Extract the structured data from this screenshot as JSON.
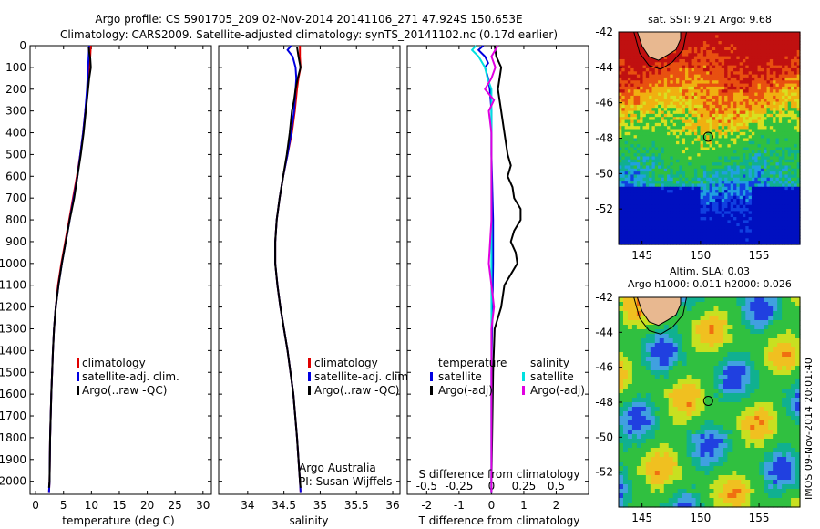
{
  "figure": {
    "title_line1": "Argo profile: CS 5901705_209 02-Nov-2014 20141106_271 47.924S 150.653E",
    "title_line2": "Climatology: CARS2009. Satellite-adjusted climatology: synTS_20141102.nc (0.17d earlier)",
    "timestamp": "IMOS 09-Nov-2014 20:01:40",
    "credit_line1": "Argo Australia",
    "credit_line2": "PI: Susan Wijffels"
  },
  "chart_data": [
    {
      "type": "line",
      "name": "temperature-profile",
      "xlabel": "temperature (deg C)",
      "ylabel": "",
      "xlim": [
        -1,
        31.5
      ],
      "ylim": [
        0,
        2060
      ],
      "xticks": [
        "0",
        "5",
        "10",
        "15",
        "20",
        "25",
        "30"
      ],
      "xtick_values": [
        0,
        5,
        10,
        15,
        20,
        25,
        30
      ],
      "yticks": [
        "0",
        "100",
        "200",
        "300",
        "400",
        "500",
        "600",
        "700",
        "800",
        "900",
        "1000",
        "1100",
        "1200",
        "1300",
        "1400",
        "1500",
        "1600",
        "1700",
        "1800",
        "1900",
        "2000"
      ],
      "ytick_values": [
        0,
        100,
        200,
        300,
        400,
        500,
        600,
        700,
        800,
        900,
        1000,
        1100,
        1200,
        1300,
        1400,
        1500,
        1600,
        1700,
        1800,
        1900,
        2000
      ],
      "legend": [
        "climatology",
        "satellite-adj. clim.",
        "Argo(..raw -QC)"
      ],
      "series": [
        {
          "name": "climatology",
          "color": "#e00000",
          "depth": [
            0,
            50,
            100,
            200,
            300,
            400,
            500,
            600,
            700,
            800,
            900,
            1000,
            1100,
            1200,
            1300,
            1400,
            1600,
            1800,
            2000,
            2050
          ],
          "values": [
            9.9,
            9.8,
            9.6,
            9.3,
            8.9,
            8.5,
            8.0,
            7.4,
            6.7,
            6.0,
            5.3,
            4.6,
            4.0,
            3.6,
            3.3,
            3.1,
            2.8,
            2.6,
            2.5,
            2.4
          ]
        },
        {
          "name": "satellite-adj. clim.",
          "color": "#0000e0",
          "depth": [
            0,
            50,
            100,
            200,
            300,
            400,
            500,
            600,
            700,
            800,
            900,
            1000,
            1100,
            1200,
            1300,
            1400,
            1600,
            1800,
            2000,
            2050
          ],
          "values": [
            9.6,
            9.5,
            9.4,
            9.2,
            8.9,
            8.5,
            8.0,
            7.5,
            6.8,
            6.1,
            5.4,
            4.7,
            4.1,
            3.6,
            3.3,
            3.1,
            2.8,
            2.6,
            2.5,
            2.4
          ]
        },
        {
          "name": "Argo(..raw -QC)",
          "color": "#000000",
          "depth": [
            5,
            30,
            60,
            100,
            150,
            200,
            300,
            400,
            500,
            600,
            700,
            800,
            900,
            1000,
            1100,
            1200,
            1300,
            1400,
            1600,
            1800,
            2000,
            2030
          ],
          "values": [
            9.5,
            9.6,
            9.8,
            9.9,
            9.6,
            9.4,
            9.0,
            8.6,
            8.1,
            7.5,
            6.9,
            6.1,
            5.4,
            4.7,
            4.1,
            3.6,
            3.3,
            3.1,
            2.8,
            2.6,
            2.5,
            2.4
          ]
        }
      ]
    },
    {
      "type": "line",
      "name": "salinity-profile",
      "xlabel": "salinity",
      "xlim": [
        33.6,
        36.1
      ],
      "ylim": [
        0,
        2060
      ],
      "xticks": [
        "34",
        "34.5",
        "35",
        "35.5",
        "36"
      ],
      "xtick_values": [
        34,
        34.5,
        35,
        35.5,
        36
      ],
      "legend": [
        "climatology",
        "satellite-adj. clim.",
        "Argo(..raw -QC)"
      ],
      "series": [
        {
          "name": "climatology",
          "color": "#e00000",
          "depth": [
            0,
            50,
            100,
            150,
            200,
            300,
            400,
            500,
            600,
            700,
            800,
            900,
            1000,
            1100,
            1200,
            1400,
            1600,
            1800,
            2000,
            2050
          ],
          "values": [
            34.72,
            34.72,
            34.73,
            34.7,
            34.68,
            34.65,
            34.61,
            34.55,
            34.49,
            34.44,
            34.4,
            34.38,
            34.38,
            34.41,
            34.45,
            34.55,
            34.63,
            34.68,
            34.72,
            34.73
          ]
        },
        {
          "name": "satellite-adj. clim.",
          "color": "#0000e0",
          "depth": [
            0,
            20,
            50,
            100,
            150,
            200,
            300,
            400,
            500,
            600,
            700,
            800,
            900,
            1000,
            1100,
            1200,
            1400,
            1600,
            1800,
            2000,
            2050
          ],
          "values": [
            34.6,
            34.55,
            34.62,
            34.66,
            34.67,
            34.66,
            34.64,
            34.6,
            34.55,
            34.49,
            34.44,
            34.4,
            34.38,
            34.38,
            34.41,
            34.45,
            34.55,
            34.63,
            34.68,
            34.72,
            34.73
          ]
        },
        {
          "name": "Argo(..raw -QC)",
          "color": "#000000",
          "depth": [
            5,
            50,
            100,
            150,
            200,
            250,
            300,
            400,
            500,
            600,
            700,
            800,
            900,
            1000,
            1100,
            1200,
            1400,
            1600,
            1800,
            2000,
            2030
          ],
          "values": [
            34.68,
            34.7,
            34.73,
            34.69,
            34.66,
            34.64,
            34.61,
            34.58,
            34.54,
            34.49,
            34.44,
            34.4,
            34.38,
            34.38,
            34.41,
            34.45,
            34.55,
            34.63,
            34.68,
            34.72,
            34.73
          ]
        }
      ]
    },
    {
      "type": "line",
      "name": "difference-profile",
      "xlabel": "T difference from climatology",
      "xlabel_top": "S difference from climatology",
      "xlim": [
        -2.6,
        3.0
      ],
      "ylim": [
        0,
        2060
      ],
      "xticks": [
        "-2",
        "-1",
        "0",
        "1",
        "2"
      ],
      "xtick_values": [
        -2,
        -1,
        0,
        1,
        2
      ],
      "xticks_top": [
        "-0.5",
        "-0.25",
        "0",
        "0.25",
        "0.5"
      ],
      "xtick_values_top": [
        -0.5,
        -0.25,
        0,
        0.25,
        0.5
      ],
      "legend_header": [
        "temperature",
        "salinity"
      ],
      "legend": [
        "satellite",
        "Argo(-adj)",
        "satellite",
        "Argo(-adj)"
      ],
      "series": [
        {
          "name": "temperature satellite",
          "color": "#0000e0",
          "depth": [
            0,
            20,
            50,
            80,
            100,
            150,
            200,
            300,
            500,
            800,
            1000,
            1500,
            2000,
            2050
          ],
          "values": [
            -0.25,
            -0.4,
            -0.2,
            -0.1,
            -0.2,
            -0.1,
            -0.05,
            0.0,
            0.0,
            0.05,
            0.05,
            0.0,
            0.0,
            0.0
          ]
        },
        {
          "name": "temperature Argo(-adj)",
          "color": "#000000",
          "depth": [
            0,
            50,
            100,
            200,
            300,
            400,
            500,
            550,
            600,
            650,
            700,
            750,
            800,
            850,
            900,
            950,
            1000,
            1100,
            1200,
            1300,
            1500,
            2000,
            2050
          ],
          "values": [
            0.1,
            0.15,
            0.3,
            0.2,
            0.3,
            0.4,
            0.5,
            0.6,
            0.5,
            0.65,
            0.7,
            0.9,
            0.9,
            0.7,
            0.6,
            0.75,
            0.8,
            0.4,
            0.3,
            0.1,
            0.05,
            0.0,
            0.0
          ]
        },
        {
          "name": "salinity satellite",
          "color": "#00e0e0",
          "depth": [
            0,
            20,
            50,
            100,
            150,
            200,
            300,
            500,
            800,
            1000,
            1200,
            1500,
            2000,
            2050
          ],
          "values": [
            -0.12,
            -0.15,
            -0.1,
            -0.05,
            -0.03,
            0.0,
            0.0,
            0.0,
            0.0,
            0.0,
            0.0,
            0.0,
            0.0,
            0.0
          ]
        },
        {
          "name": "salinity Argo(-adj)",
          "color": "#e000e0",
          "depth": [
            0,
            50,
            100,
            150,
            200,
            250,
            300,
            400,
            600,
            800,
            1000,
            1100,
            1200,
            1300,
            1500,
            2000,
            2050
          ],
          "values": [
            0.05,
            0.0,
            0.03,
            0.0,
            -0.05,
            0.02,
            -0.02,
            0.0,
            0.0,
            0.0,
            -0.02,
            0.0,
            0.02,
            0.0,
            0.0,
            0.0,
            0.0
          ]
        }
      ]
    },
    {
      "type": "heatmap",
      "name": "sst-map",
      "title": "sat. SST: 9.21  Argo: 9.68",
      "xlim": [
        143,
        158.5
      ],
      "ylim": [
        -54,
        -42
      ],
      "xticks": [
        "145",
        "150",
        "155"
      ],
      "xtick_values": [
        145,
        150,
        155
      ],
      "yticks": [
        "-42",
        "-44",
        "-46",
        "-48",
        "-50",
        "-52"
      ],
      "ytick_values": [
        -42,
        -44,
        -46,
        -48,
        -50,
        -52
      ],
      "float_position": {
        "lon": 150.653,
        "lat": -47.924
      }
    },
    {
      "type": "heatmap",
      "name": "sla-map",
      "title_line1": "Altim. SLA: 0.03",
      "title_line2": "Argo h1000: 0.011 h2000: 0.026",
      "xlim": [
        143,
        158.5
      ],
      "ylim": [
        -54,
        -42
      ],
      "xticks": [
        "145",
        "150",
        "155"
      ],
      "xtick_values": [
        145,
        150,
        155
      ],
      "yticks": [
        "-42",
        "-44",
        "-46",
        "-48",
        "-50",
        "-52"
      ],
      "ytick_values": [
        -42,
        -44,
        -46,
        -48,
        -50,
        -52
      ],
      "float_position": {
        "lon": 150.653,
        "lat": -47.924
      }
    }
  ]
}
